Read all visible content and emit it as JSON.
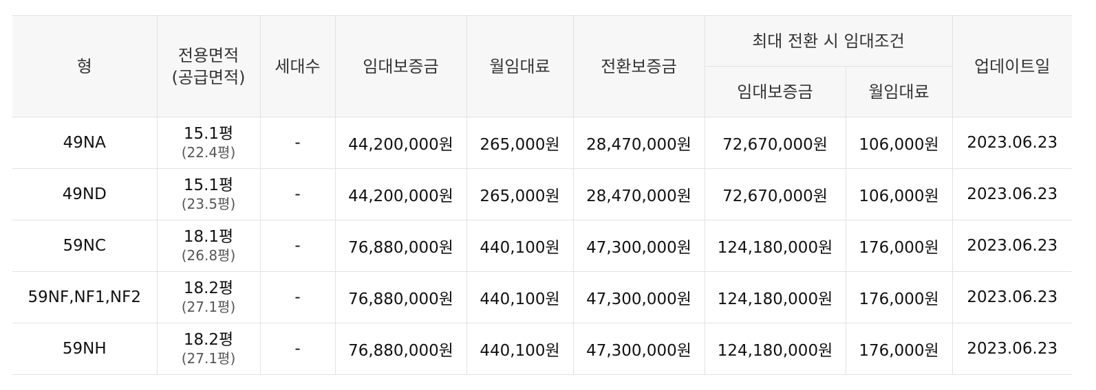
{
  "header": {
    "type": "형",
    "area_line1": "전용면적",
    "area_line2": "(공급면적)",
    "households": "세대수",
    "deposit": "임대보증금",
    "monthly_rent": "월임대료",
    "conversion_deposit": "전환보증금",
    "max_conversion": "최대 전환 시 임대조건",
    "max_deposit": "임대보증금",
    "max_rent": "월임대료",
    "updated": "업데이트일"
  },
  "rows": [
    {
      "type": "49NA",
      "area": "15.1평",
      "supply": "(22.4평)",
      "households": "-",
      "deposit": "44,200,000원",
      "rent": "265,000원",
      "conversion": "28,470,000원",
      "max_deposit": "72,670,000원",
      "max_rent": "106,000원",
      "updated": "2023.06.23"
    },
    {
      "type": "49ND",
      "area": "15.1평",
      "supply": "(23.5평)",
      "households": "-",
      "deposit": "44,200,000원",
      "rent": "265,000원",
      "conversion": "28,470,000원",
      "max_deposit": "72,670,000원",
      "max_rent": "106,000원",
      "updated": "2023.06.23"
    },
    {
      "type": "59NC",
      "area": "18.1평",
      "supply": "(26.8평)",
      "households": "-",
      "deposit": "76,880,000원",
      "rent": "440,100원",
      "conversion": "47,300,000원",
      "max_deposit": "124,180,000원",
      "max_rent": "176,000원",
      "updated": "2023.06.23"
    },
    {
      "type": "59NF,NF1,NF2",
      "area": "18.2평",
      "supply": "(27.1평)",
      "households": "-",
      "deposit": "76,880,000원",
      "rent": "440,100원",
      "conversion": "47,300,000원",
      "max_deposit": "124,180,000원",
      "max_rent": "176,000원",
      "updated": "2023.06.23"
    },
    {
      "type": "59NH",
      "area": "18.2평",
      "supply": "(27.1평)",
      "households": "-",
      "deposit": "76,880,000원",
      "rent": "440,100원",
      "conversion": "47,300,000원",
      "max_deposit": "124,180,000원",
      "max_rent": "176,000원",
      "updated": "2023.06.23"
    }
  ]
}
